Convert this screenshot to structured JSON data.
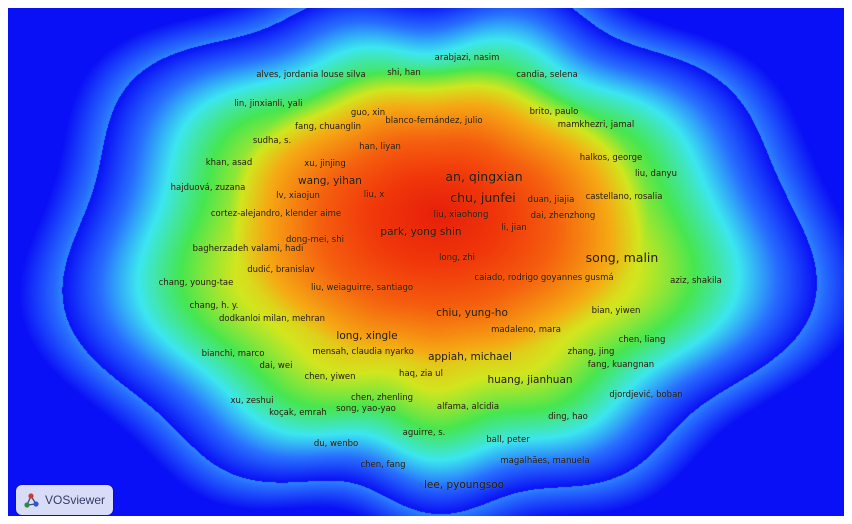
{
  "app": {
    "name": "VOSviewer"
  },
  "colors": {
    "background": "#0a10f5",
    "logo_bg": "#d9dcf7",
    "logo_text": "#333b66"
  },
  "labels": [
    {
      "text": "arabjazi, nasim",
      "size": "s"
    },
    {
      "text": "alves, jordania louse silva",
      "size": "s"
    },
    {
      "text": "shi, han",
      "size": "s"
    },
    {
      "text": "candia, selena",
      "size": "s"
    },
    {
      "text": "lin, jinxian",
      "size": "s"
    },
    {
      "text": "li, yali",
      "size": "s"
    },
    {
      "text": "guo, xin",
      "size": "s"
    },
    {
      "text": "brito, paulo",
      "size": "s"
    },
    {
      "text": "blanco-fernández, julio",
      "size": "s"
    },
    {
      "text": "fang, chuanglin",
      "size": "s"
    },
    {
      "text": "mamkhezri, jamal",
      "size": "s"
    },
    {
      "text": "sudha, s.",
      "size": "s"
    },
    {
      "text": "han, liyan",
      "size": "s"
    },
    {
      "text": "halkos, george",
      "size": "s"
    },
    {
      "text": "khan, asad",
      "size": "s"
    },
    {
      "text": "xu, jinjing",
      "size": "s"
    },
    {
      "text": "an, qingxian",
      "size": "l"
    },
    {
      "text": "liu, danyu",
      "size": "s"
    },
    {
      "text": "wang, yihan",
      "size": "m"
    },
    {
      "text": "hajduová, zuzana",
      "size": "s"
    },
    {
      "text": "lv, xiaojun",
      "size": "s"
    },
    {
      "text": "liu, x",
      "size": "s"
    },
    {
      "text": "chu, junfei",
      "size": "l"
    },
    {
      "text": "duan, jiajia",
      "size": "s"
    },
    {
      "text": "castellano, rosalia",
      "size": "s"
    },
    {
      "text": "cortez-alejandro, klender aime",
      "size": "s"
    },
    {
      "text": "liu, xiaohong",
      "size": "s"
    },
    {
      "text": "dai, zhenzhong",
      "size": "s"
    },
    {
      "text": "li, jian",
      "size": "s"
    },
    {
      "text": "park, yong shin",
      "size": "m"
    },
    {
      "text": "dong-mei, shi",
      "size": "s"
    },
    {
      "text": "bagherzadeh valami, hadi",
      "size": "s"
    },
    {
      "text": "long, zhi",
      "size": "s"
    },
    {
      "text": "song, malin",
      "size": "l"
    },
    {
      "text": "dudić, branislav",
      "size": "s"
    },
    {
      "text": "caiado, rodrigo goyannes gusmá",
      "size": "s"
    },
    {
      "text": "chang, young-tae",
      "size": "s"
    },
    {
      "text": "liu, wei",
      "size": "s"
    },
    {
      "text": "aguirre, santiago",
      "size": "s"
    },
    {
      "text": "aziz, shakila",
      "size": "s"
    },
    {
      "text": "chang, h. y.",
      "size": "s"
    },
    {
      "text": "chiu, yung-ho",
      "size": "m"
    },
    {
      "text": "bian, yiwen",
      "size": "s"
    },
    {
      "text": "dodkanloi milan, mehran",
      "size": "s"
    },
    {
      "text": "madaleno, mara",
      "size": "s"
    },
    {
      "text": "long, xingle",
      "size": "m"
    },
    {
      "text": "chen, liang",
      "size": "s"
    },
    {
      "text": "bianchi, marco",
      "size": "s"
    },
    {
      "text": "mensah, claudia nyarko",
      "size": "s"
    },
    {
      "text": "appiah, michael",
      "size": "m"
    },
    {
      "text": "zhang, jing",
      "size": "s"
    },
    {
      "text": "dai, wei",
      "size": "s"
    },
    {
      "text": "fang, kuangnan",
      "size": "s"
    },
    {
      "text": "chen, yiwen",
      "size": "s"
    },
    {
      "text": "haq, zia ul",
      "size": "s"
    },
    {
      "text": "huang, jianhuan",
      "size": "m"
    },
    {
      "text": "djordjević, boban",
      "size": "s"
    },
    {
      "text": "xu, zeshui",
      "size": "s"
    },
    {
      "text": "chen, zhenling",
      "size": "s"
    },
    {
      "text": "alfama, alcidia",
      "size": "s"
    },
    {
      "text": "koçak, emrah",
      "size": "s"
    },
    {
      "text": "song, yao-yao",
      "size": "s"
    },
    {
      "text": "ding, hao",
      "size": "s"
    },
    {
      "text": "aguirre, s.",
      "size": "s"
    },
    {
      "text": "du, wenbo",
      "size": "s"
    },
    {
      "text": "ball, peter",
      "size": "s"
    },
    {
      "text": "magalhães, manuela",
      "size": "s"
    },
    {
      "text": "chen, fang",
      "size": "s"
    },
    {
      "text": "lee, pyoungsoo",
      "size": "m"
    }
  ]
}
